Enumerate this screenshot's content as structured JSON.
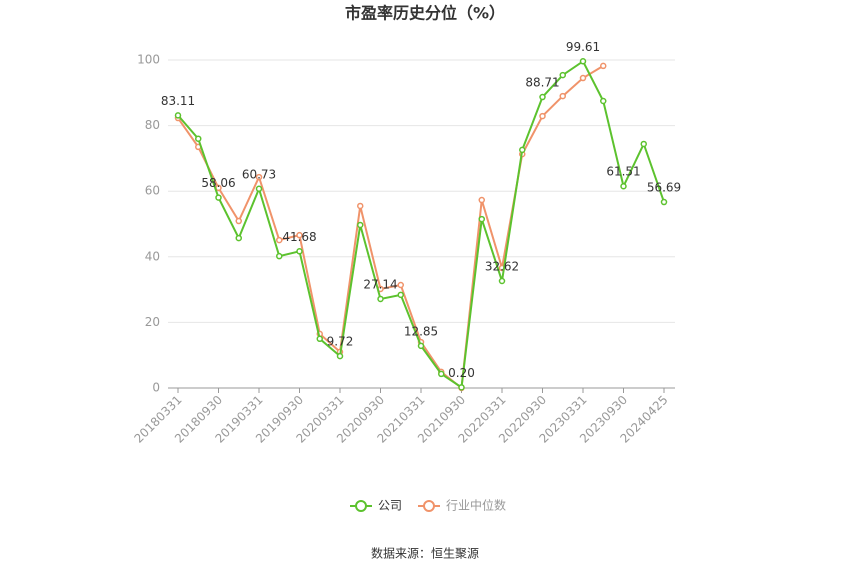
{
  "chart_data": {
    "type": "line",
    "title": "市盈率历史分位（%）",
    "categories": [
      "20180331",
      null,
      "20180930",
      null,
      "20190331",
      null,
      "20190930",
      null,
      "20200331",
      null,
      "20200930",
      null,
      "20210331",
      null,
      "20210930",
      null,
      "20220331",
      null,
      "20220930",
      null,
      "20230331",
      null,
      "20230930",
      null,
      "20240425"
    ],
    "series": [
      {
        "name": "公司",
        "color": "#5cc22e",
        "values": [
          83.11,
          76,
          58.06,
          45.7,
          60.73,
          40.2,
          41.68,
          15,
          9.72,
          49.7,
          27.14,
          28.4,
          12.85,
          4.3,
          0.2,
          51.5,
          32.62,
          72.6,
          88.71,
          95.4,
          99.61,
          87.5,
          61.51,
          74.4,
          56.69
        ],
        "value_labels": [
          "83.11",
          null,
          "58.06",
          null,
          "60.73",
          null,
          "41.68",
          null,
          "9.72",
          null,
          "27.14",
          null,
          "12.85",
          null,
          "0.20",
          null,
          "32.62",
          null,
          "88.71",
          null,
          "99.61",
          null,
          "61.51",
          null,
          "56.69"
        ]
      },
      {
        "name": "行业中位数",
        "color": "#f0936a",
        "values": [
          82.3,
          73.5,
          61,
          50.9,
          64.3,
          45.1,
          46.6,
          16.5,
          11,
          55.5,
          30.2,
          31.4,
          14,
          4.9,
          0,
          57.3,
          36.6,
          71.3,
          82.9,
          89,
          94.5,
          98.2,
          null,
          null,
          null
        ]
      }
    ],
    "ylim": [
      0,
      100
    ],
    "yticks": [
      0,
      20,
      40,
      60,
      80,
      100
    ],
    "grid": true,
    "source": "数据来源：恒生聚源"
  }
}
